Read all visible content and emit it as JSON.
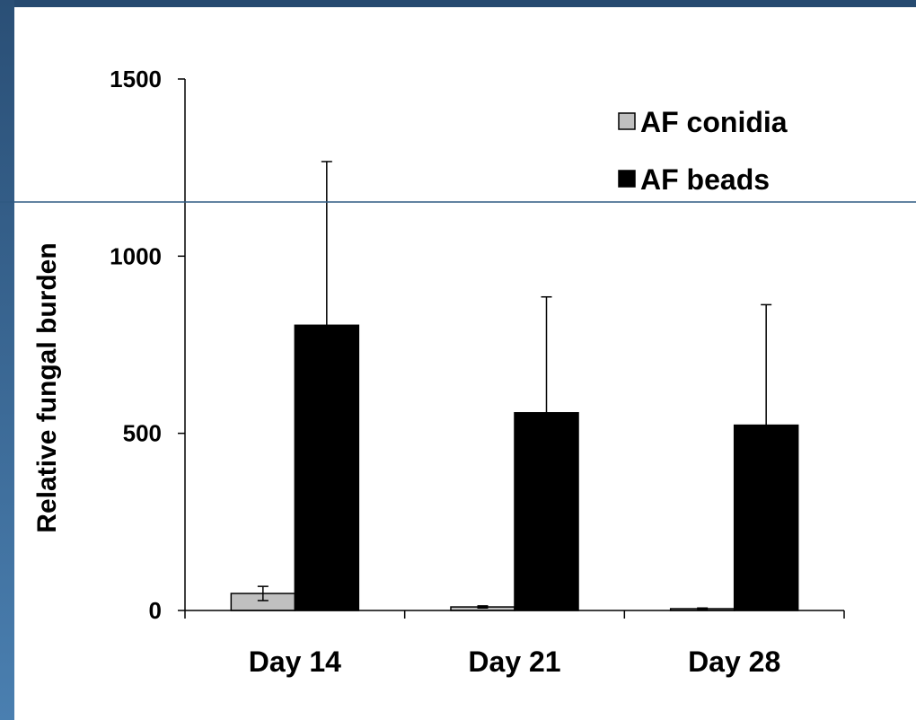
{
  "chart_data": {
    "type": "bar",
    "title": "",
    "xlabel": "",
    "ylabel": "Relative fungal burden",
    "categories": [
      "Day 14",
      "Day 21",
      "Day 28"
    ],
    "ylim": [
      0,
      1500
    ],
    "yticks": [
      0,
      500,
      1000,
      1500
    ],
    "ytick_labels": [
      "0",
      "500",
      "1000",
      "1500"
    ],
    "grid": false,
    "legend_position": "top-right",
    "series": [
      {
        "name": "AF conidia",
        "color": "#c0c0c0",
        "values": [
          48,
          10,
          5
        ],
        "errors": [
          20,
          3,
          2
        ]
      },
      {
        "name": "AF beads",
        "color": "#000000",
        "values": [
          805,
          558,
          523
        ],
        "errors": [
          462,
          327,
          340
        ]
      }
    ]
  },
  "colors": {
    "frame": "#2f5a82",
    "background": "#ffffff",
    "rule_line": "#2f5a82"
  }
}
